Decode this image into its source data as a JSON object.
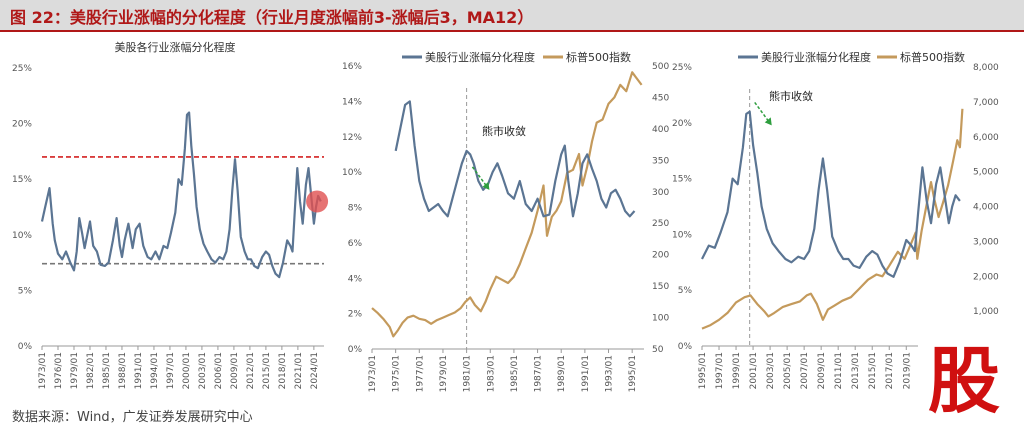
{
  "figure": {
    "title": "图 22：美股行业涨幅的分化程度（行业月度涨幅前3-涨幅后3，MA12）",
    "source": "数据来源：Wind，广发证券发展研究中心",
    "watermark": "股"
  },
  "colors": {
    "blue": "#5b7593",
    "gold": "#c49a5c",
    "red": "#d42020",
    "gray": "#777777",
    "marker": "#e05050"
  },
  "chart_data": [
    {
      "type": "line",
      "title": "美股各行业涨幅分化程度",
      "ylim": [
        0,
        25
      ],
      "yticks": [
        0,
        5,
        10,
        15,
        20,
        25
      ],
      "ytick_labels": [
        "0%",
        "5%",
        "10%",
        "15%",
        "20%",
        "25%"
      ],
      "xlim": [
        1973.0,
        2025.9
      ],
      "xticks": [
        1973,
        1976,
        1979,
        1982,
        1985,
        1988,
        1991,
        1994,
        1997,
        2000,
        2003,
        2006,
        2009,
        2012,
        2015,
        2018,
        2021,
        2024
      ],
      "xtick_labels": [
        "1973/01",
        "1976/01",
        "1979/01",
        "1982/01",
        "1985/01",
        "1988/01",
        "1991/01",
        "1994/01",
        "1997/01",
        "2000/01",
        "2003/01",
        "2006/01",
        "2009/01",
        "2012/01",
        "2015/01",
        "2018/01",
        "2021/01",
        "2024/01"
      ],
      "reference_lines": [
        {
          "name": "upper",
          "value": 17.0,
          "style": "dashed",
          "color": "#d42020"
        },
        {
          "name": "lower",
          "value": 7.4,
          "style": "dashed",
          "color": "#777777"
        }
      ],
      "highlight": {
        "x": 2024.6,
        "y": 13.0
      },
      "series": [
        {
          "name": "美股行业涨幅分化程度",
          "axis": "left",
          "color": "#5b7593",
          "x": [
            1973.0,
            1973.6,
            1974.4,
            1975.0,
            1975.4,
            1976.0,
            1976.8,
            1977.5,
            1978.3,
            1979.0,
            1979.5,
            1980.0,
            1980.5,
            1981.0,
            1981.5,
            1982.0,
            1982.6,
            1983.3,
            1984.0,
            1984.8,
            1985.5,
            1986.3,
            1987.0,
            1987.6,
            1988.0,
            1988.5,
            1989.2,
            1990.0,
            1990.6,
            1991.3,
            1992.0,
            1992.8,
            1993.5,
            1994.3,
            1995.0,
            1995.8,
            1996.5,
            1997.2,
            1998.0,
            1998.6,
            1999.2,
            1999.8,
            2000.2,
            2000.6,
            2001.0,
            2001.5,
            2002.0,
            2002.6,
            2003.3,
            2004.0,
            2004.8,
            2005.5,
            2006.3,
            2007.0,
            2007.6,
            2008.2,
            2008.7,
            2009.2,
            2009.7,
            2010.3,
            2011.0,
            2011.6,
            2012.2,
            2012.8,
            2013.5,
            2014.3,
            2015.0,
            2015.6,
            2016.2,
            2016.8,
            2017.5,
            2018.2,
            2019.0,
            2019.6,
            2020.0,
            2020.4,
            2020.9,
            2021.4,
            2021.9,
            2022.5,
            2023.0,
            2023.5,
            2024.0,
            2024.4,
            2024.8,
            2025.3
          ],
          "y": [
            11.2,
            12.5,
            14.2,
            11.0,
            9.5,
            8.3,
            7.8,
            8.5,
            7.5,
            6.8,
            8.5,
            11.5,
            10.2,
            8.8,
            10.0,
            11.2,
            9.0,
            8.5,
            7.3,
            7.2,
            7.5,
            9.5,
            11.5,
            9.0,
            8.0,
            9.5,
            11.0,
            8.8,
            10.5,
            11.0,
            9.0,
            8.0,
            7.8,
            8.5,
            7.8,
            9.0,
            8.8,
            10.2,
            12.0,
            15.0,
            14.5,
            17.8,
            20.8,
            21.0,
            18.0,
            15.5,
            12.5,
            10.5,
            9.2,
            8.5,
            7.8,
            7.5,
            8.0,
            7.8,
            8.5,
            10.5,
            14.0,
            16.8,
            14.0,
            9.8,
            8.5,
            7.8,
            7.8,
            7.2,
            7.0,
            8.0,
            8.5,
            8.2,
            7.2,
            6.5,
            6.2,
            7.5,
            9.5,
            9.0,
            8.5,
            12.0,
            16.0,
            13.0,
            11.0,
            14.5,
            16.0,
            13.5,
            11.0,
            12.5,
            13.5,
            13.0
          ]
        }
      ]
    },
    {
      "type": "line",
      "ylim": [
        0,
        16
      ],
      "yticks": [
        0,
        2,
        4,
        6,
        8,
        10,
        12,
        14,
        16
      ],
      "ytick_labels": [
        "0%",
        "2%",
        "4%",
        "6%",
        "8%",
        "10%",
        "12%",
        "14%",
        "16%"
      ],
      "y2lim": [
        50,
        500
      ],
      "y2ticks": [
        50,
        100,
        150,
        200,
        250,
        300,
        350,
        400,
        450,
        500
      ],
      "y2tick_labels": [
        "50",
        "100",
        "150",
        "200",
        "250",
        "300",
        "350",
        "400",
        "450",
        "500"
      ],
      "xlim": [
        1973.0,
        1996.0
      ],
      "xticks": [
        1973,
        1975,
        1977,
        1979,
        1981,
        1983,
        1985,
        1987,
        1989,
        1991,
        1993,
        1995
      ],
      "xtick_labels": [
        "1973/01",
        "1975/01",
        "1977/01",
        "1979/01",
        "1981/01",
        "1983/01",
        "1985/01",
        "1987/01",
        "1989/01",
        "1991/01",
        "1993/01",
        "1995/01"
      ],
      "legend": [
        "美股行业涨幅分化程度",
        "标普500指数"
      ],
      "vline": 1981.0,
      "annotation": {
        "text": "熊市收敛",
        "x": 1982.0,
        "y": 9.9
      },
      "series": [
        {
          "name": "美股行业涨幅分化程度",
          "axis": "left",
          "color": "#5b7593",
          "x": [
            1975.0,
            1975.4,
            1975.8,
            1976.2,
            1976.6,
            1977.0,
            1977.4,
            1977.8,
            1978.2,
            1978.6,
            1979.0,
            1979.4,
            1979.8,
            1980.2,
            1980.6,
            1981.0,
            1981.3,
            1981.6,
            1982.0,
            1982.4,
            1982.8,
            1983.2,
            1983.6,
            1984.0,
            1984.5,
            1985.0,
            1985.5,
            1986.0,
            1986.5,
            1987.0,
            1987.5,
            1988.0,
            1988.5,
            1989.0,
            1989.3,
            1989.6,
            1990.0,
            1990.4,
            1990.8,
            1991.2,
            1991.6,
            1992.0,
            1992.4,
            1992.8,
            1993.2,
            1993.6,
            1994.0,
            1994.4,
            1994.8,
            1995.2
          ],
          "y": [
            11.2,
            12.5,
            13.8,
            14.0,
            11.5,
            9.5,
            8.5,
            7.8,
            8.0,
            8.2,
            7.8,
            7.5,
            8.5,
            9.5,
            10.5,
            11.2,
            11.0,
            10.5,
            9.5,
            9.0,
            9.3,
            10.0,
            10.5,
            9.8,
            8.8,
            8.5,
            9.5,
            8.2,
            7.8,
            8.5,
            7.5,
            7.6,
            9.5,
            11.0,
            11.5,
            9.5,
            7.5,
            8.8,
            10.5,
            11.0,
            10.2,
            9.5,
            8.5,
            8.0,
            8.8,
            9.0,
            8.5,
            7.8,
            7.5,
            7.8
          ]
        },
        {
          "name": "标普500指数",
          "axis": "right",
          "color": "#c49a5c",
          "x": [
            1973.0,
            1973.5,
            1974.0,
            1974.5,
            1974.8,
            1975.2,
            1975.6,
            1976.0,
            1976.5,
            1977.0,
            1977.5,
            1978.0,
            1978.5,
            1979.0,
            1979.5,
            1980.0,
            1980.5,
            1980.9,
            1981.3,
            1981.7,
            1982.2,
            1982.6,
            1983.0,
            1983.5,
            1984.0,
            1984.5,
            1985.0,
            1985.5,
            1986.0,
            1986.5,
            1987.0,
            1987.5,
            1987.8,
            1988.2,
            1988.6,
            1989.0,
            1989.5,
            1990.0,
            1990.5,
            1990.8,
            1991.2,
            1991.6,
            1992.0,
            1992.5,
            1993.0,
            1993.5,
            1994.0,
            1994.5,
            1995.0,
            1995.4,
            1995.8
          ],
          "y": [
            115,
            107,
            97,
            85,
            70,
            80,
            92,
            100,
            103,
            98,
            96,
            90,
            96,
            100,
            104,
            108,
            115,
            125,
            132,
            120,
            110,
            125,
            145,
            165,
            160,
            155,
            165,
            185,
            210,
            235,
            270,
            310,
            230,
            260,
            270,
            285,
            330,
            335,
            360,
            310,
            340,
            380,
            410,
            415,
            440,
            450,
            470,
            460,
            490,
            480,
            470
          ]
        }
      ]
    },
    {
      "type": "line",
      "ylim": [
        0,
        25
      ],
      "yticks": [
        0,
        5,
        10,
        15,
        20,
        25
      ],
      "ytick_labels": [
        "0%",
        "5%",
        "10%",
        "15%",
        "20%",
        "25%"
      ],
      "y2lim": [
        0,
        8000
      ],
      "y2ticks": [
        1000,
        2000,
        3000,
        4000,
        5000,
        6000,
        7000,
        8000
      ],
      "y2tick_labels": [
        "1,000",
        "2,000",
        "3,000",
        "4,000",
        "5,000",
        "6,000",
        "7,000",
        "8,000"
      ],
      "xlim": [
        1995.0,
        2025.9
      ],
      "xticks": [
        1995,
        1997,
        1999,
        2001,
        2003,
        2005,
        2007,
        2009,
        2011,
        2013,
        2015,
        2017,
        2019,
        2021,
        2023
      ],
      "xtick_labels": [
        "1995/01",
        "1997/01",
        "1999/01",
        "2001/01",
        "2003/01",
        "2005/01",
        "2007/01",
        "2009/01",
        "2011/01",
        "2013/01",
        "2015/01",
        "2017/01",
        "2019/01",
        "2021/01",
        "2023/01"
      ],
      "legend": [
        "美股行业涨幅分化程度",
        "标普500指数"
      ],
      "vline": 2000.6,
      "annotation": {
        "text": "熊市收敛",
        "x": 2001.9,
        "y": 21.2
      },
      "series": [
        {
          "name": "美股行业涨幅分化程度",
          "axis": "left",
          "color": "#5b7593",
          "x": [
            1995.0,
            1995.8,
            1996.5,
            1997.2,
            1998.0,
            1998.6,
            1999.2,
            1999.8,
            2000.2,
            2000.6,
            2001.0,
            2001.5,
            2002.0,
            2002.6,
            2003.3,
            2004.0,
            2004.8,
            2005.5,
            2006.3,
            2007.0,
            2007.6,
            2008.2,
            2008.7,
            2009.2,
            2009.7,
            2010.3,
            2011.0,
            2011.6,
            2012.2,
            2012.8,
            2013.5,
            2014.3,
            2015.0,
            2015.6,
            2016.2,
            2016.8,
            2017.5,
            2018.2,
            2019.0,
            2019.6,
            2020.0,
            2020.4,
            2020.9,
            2021.4,
            2021.9,
            2022.5,
            2023.0,
            2023.5,
            2024.0,
            2024.4,
            2024.8,
            2025.3
          ],
          "y": [
            7.8,
            9.0,
            8.8,
            10.2,
            12.0,
            15.0,
            14.5,
            17.8,
            20.8,
            21.0,
            18.0,
            15.5,
            12.5,
            10.5,
            9.2,
            8.5,
            7.8,
            7.5,
            8.0,
            7.8,
            8.5,
            10.5,
            14.0,
            16.8,
            14.0,
            9.8,
            8.5,
            7.8,
            7.8,
            7.2,
            7.0,
            8.0,
            8.5,
            8.2,
            7.2,
            6.5,
            6.2,
            7.5,
            9.5,
            9.0,
            8.5,
            12.0,
            16.0,
            13.0,
            11.0,
            14.5,
            16.0,
            13.5,
            11.0,
            12.5,
            13.5,
            13.0
          ]
        },
        {
          "name": "标普500指数",
          "axis": "right",
          "color": "#c49a5c",
          "x": [
            1995.0,
            1996.0,
            1997.0,
            1998.0,
            1999.0,
            2000.0,
            2000.7,
            2001.5,
            2002.3,
            2002.8,
            2003.5,
            2004.5,
            2005.5,
            2006.5,
            2007.3,
            2007.8,
            2008.5,
            2009.2,
            2009.8,
            2010.5,
            2011.5,
            2012.5,
            2013.5,
            2014.5,
            2015.5,
            2016.2,
            2017.0,
            2018.0,
            2018.8,
            2019.5,
            2020.1,
            2020.3,
            2020.8,
            2021.5,
            2021.9,
            2022.3,
            2022.8,
            2023.3,
            2023.9,
            2024.5,
            2025.0,
            2025.3,
            2025.6
          ],
          "y": [
            500,
            600,
            750,
            950,
            1250,
            1400,
            1450,
            1200,
            1000,
            850,
            950,
            1120,
            1200,
            1280,
            1450,
            1500,
            1200,
            750,
            1050,
            1150,
            1300,
            1400,
            1650,
            1900,
            2050,
            2000,
            2300,
            2700,
            2500,
            2900,
            3250,
            2500,
            3300,
            4200,
            4700,
            4200,
            3700,
            4100,
            4600,
            5300,
            5900,
            5700,
            6800
          ]
        }
      ]
    }
  ]
}
